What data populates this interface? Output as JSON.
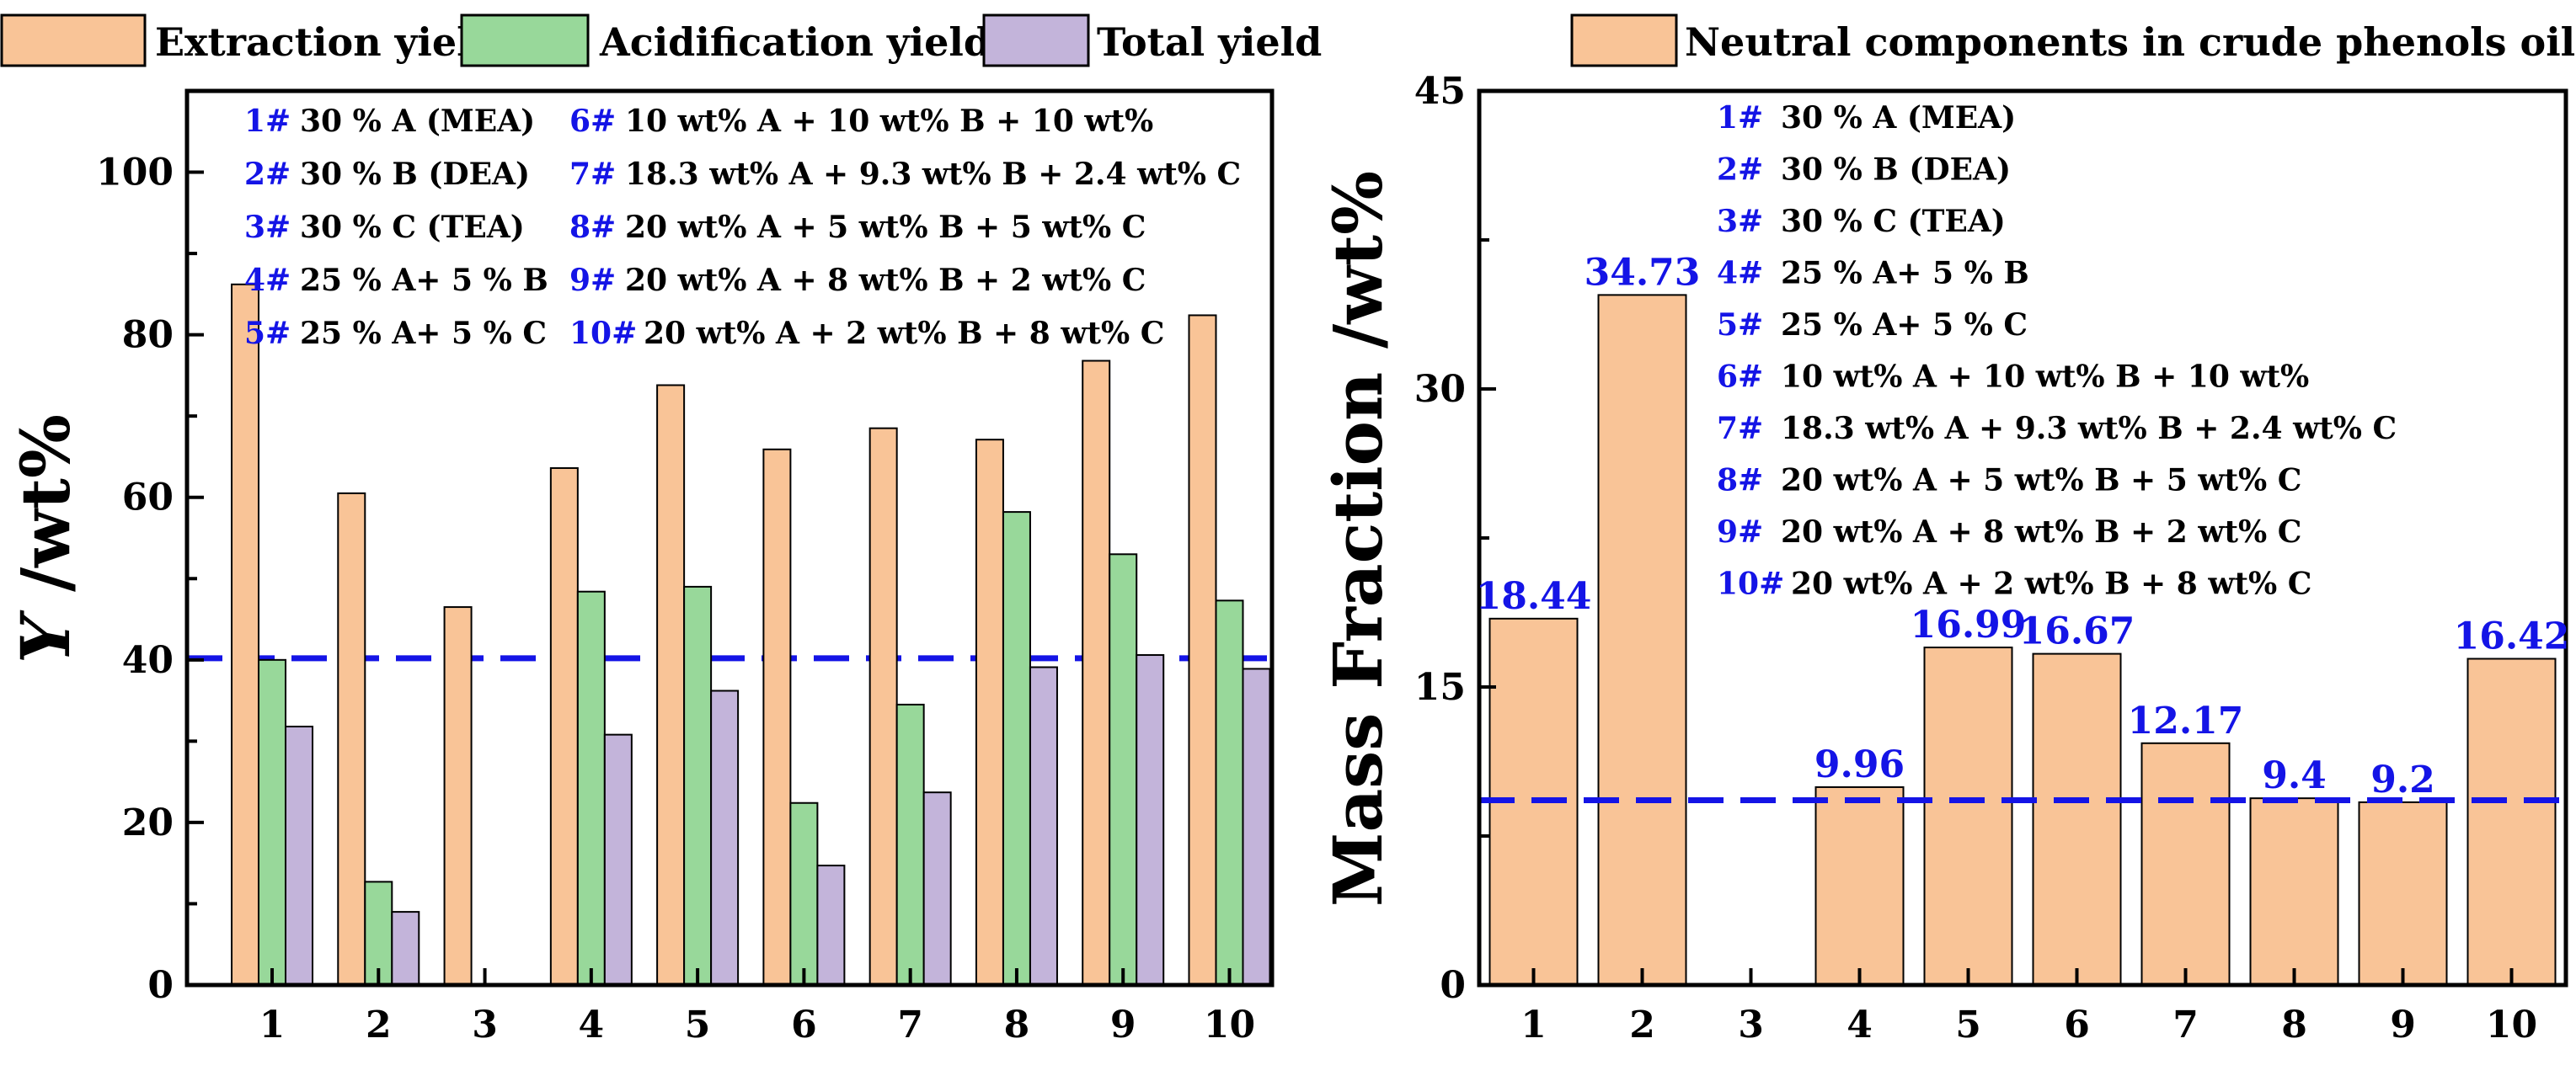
{
  "colors": {
    "extraction": "#F9C497",
    "acidification": "#98D89A",
    "total": "#C3B4DA",
    "neutral": "#F9C497",
    "reference_line": "#1414E6",
    "legend_number": "#1414E6",
    "value_label": "#1414E6"
  },
  "chart_data": [
    {
      "type": "bar",
      "xlabel": "",
      "ylabel_italic": "Y",
      "ylabel_rest": " /wt%",
      "categories": [
        "1",
        "2",
        "3",
        "4",
        "5",
        "6",
        "7",
        "8",
        "9",
        "10"
      ],
      "ylim": [
        0,
        110
      ],
      "yticks": [
        0,
        20,
        40,
        60,
        80,
        100
      ],
      "grid": false,
      "legend_position": "top (outside)",
      "reference_line": 40.2,
      "series": [
        {
          "name": "Extraction yield",
          "values": [
            86.2,
            60.5,
            46.5,
            63.6,
            73.8,
            65.9,
            68.5,
            67.1,
            76.8,
            82.4
          ]
        },
        {
          "name": "Acidification yield",
          "values": [
            40.0,
            12.7,
            0,
            48.4,
            49.0,
            22.4,
            34.5,
            58.2,
            53.0,
            47.3
          ]
        },
        {
          "name": "Total yield",
          "values": [
            31.8,
            9.0,
            0,
            30.8,
            36.2,
            14.7,
            23.7,
            39.1,
            40.6,
            38.9
          ]
        }
      ],
      "composition_key": [
        {
          "id": "1#",
          "desc": "30 % A (MEA)"
        },
        {
          "id": "2#",
          "desc": "30 % B (DEA)"
        },
        {
          "id": "3#",
          "desc": "30 % C (TEA)"
        },
        {
          "id": "4#",
          "desc": "25 % A+ 5 % B"
        },
        {
          "id": "5#",
          "desc": "25 % A+ 5 % C"
        },
        {
          "id": "6#",
          "desc": "10 wt% A + 10 wt% B + 10 wt%"
        },
        {
          "id": "7#",
          "desc": "18.3 wt% A + 9.3 wt% B + 2.4 wt% C"
        },
        {
          "id": "8#",
          "desc": "20 wt% A + 5 wt% B + 5 wt% C"
        },
        {
          "id": "9#",
          "desc": "20 wt% A + 8 wt% B + 2 wt% C"
        },
        {
          "id": "10#",
          "desc": "20 wt% A + 2 wt% B + 8 wt% C"
        }
      ]
    },
    {
      "type": "bar",
      "xlabel": "",
      "ylabel": "Mass Fraction   /wt%",
      "categories": [
        "1",
        "2",
        "3",
        "4",
        "5",
        "6",
        "7",
        "8",
        "9",
        "10"
      ],
      "ylim": [
        0,
        45
      ],
      "yticks": [
        0,
        15,
        30,
        45
      ],
      "grid": false,
      "legend_position": "top (outside)",
      "reference_line": 9.3,
      "series": [
        {
          "name": "Neutral components in crude phenols oil",
          "values": [
            18.44,
            34.73,
            0,
            9.96,
            16.99,
            16.67,
            12.17,
            9.4,
            9.2,
            16.42
          ]
        }
      ],
      "value_labels": [
        "18.44",
        "34.73",
        "",
        "9.96",
        "16.99",
        "16.67",
        "12.17",
        "9.4",
        "9.2",
        "16.42"
      ],
      "composition_key": [
        {
          "id": "1#",
          "desc": "30 % A (MEA)"
        },
        {
          "id": "2#",
          "desc": "30 % B (DEA)"
        },
        {
          "id": "3#",
          "desc": "30 % C (TEA)"
        },
        {
          "id": "4#",
          "desc": "25 % A+ 5 % B"
        },
        {
          "id": "5#",
          "desc": "25 % A+ 5 % C"
        },
        {
          "id": "6#",
          "desc": "10 wt% A + 10 wt% B + 10 wt%"
        },
        {
          "id": "7#",
          "desc": "18.3 wt% A + 9.3 wt% B + 2.4 wt% C"
        },
        {
          "id": "8#",
          "desc": "20 wt% A + 5 wt% B + 5 wt% C"
        },
        {
          "id": "9#",
          "desc": "20 wt% A + 8 wt% B + 2 wt% C"
        },
        {
          "id": "10#",
          "desc": "20 wt% A + 2 wt% B + 8 wt% C"
        }
      ]
    }
  ]
}
